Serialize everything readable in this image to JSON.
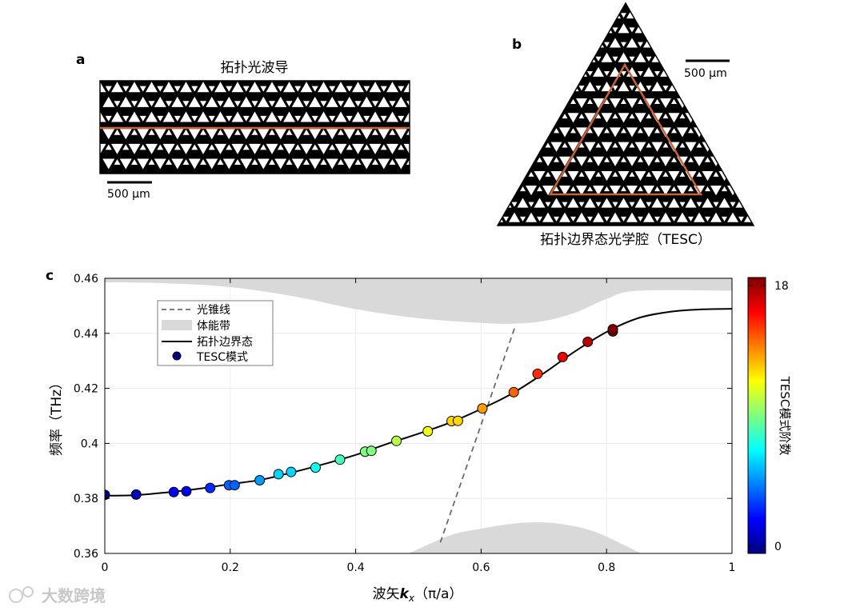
{
  "panel_a": {
    "label": "a",
    "title": "拓扑光波导",
    "scalebar": "500 μm",
    "waveguide_color": "#c8643c"
  },
  "panel_b": {
    "label": "b",
    "scalebar": "500 μm",
    "caption": "拓扑边界态光学腔（TESC）",
    "cavity_color": "#c8643c"
  },
  "panel_c": {
    "label": "c",
    "legend": {
      "light_cone": "光锥线",
      "bulk_band": "体能带",
      "edge_state": "拓扑边界态",
      "tesc_mode": "TESC模式"
    },
    "colorbar": {
      "label": "TESC模式阶数",
      "min_label": "0",
      "max_label": "18",
      "colormap": "jet"
    }
  },
  "watermark": "大数跨境",
  "chart_data": {
    "type": "scatter",
    "xlabel_prefix": "波矢",
    "xlabel_symbol": "k",
    "xlabel_subscript": "x",
    "xlabel_unit": "（π/a）",
    "ylabel": "频率（THz）",
    "xlim": [
      0,
      1
    ],
    "ylim": [
      0.36,
      0.46
    ],
    "x_ticks": [
      0,
      0.2,
      0.4,
      0.6,
      0.8,
      1
    ],
    "x_tick_labels": [
      "0",
      "0.2",
      "0.4",
      "0.6",
      "0.8",
      "1"
    ],
    "y_ticks": [
      0.36,
      0.38,
      0.4,
      0.42,
      0.44,
      0.46
    ],
    "y_tick_labels": [
      "0.36",
      "0.38",
      "0.4",
      "0.42",
      "0.44",
      "0.46"
    ],
    "grid": true,
    "legend_position": "top-left",
    "light_cone": [
      [
        0.535,
        0.364
      ],
      [
        0.655,
        0.443
      ]
    ],
    "upper_bulk_band_lower_edge": [
      [
        0,
        0.4585
      ],
      [
        0.1,
        0.4582
      ],
      [
        0.2,
        0.4568
      ],
      [
        0.3,
        0.4535
      ],
      [
        0.4,
        0.4488
      ],
      [
        0.5,
        0.4455
      ],
      [
        0.6,
        0.4438
      ],
      [
        0.65,
        0.4435
      ],
      [
        0.7,
        0.4445
      ],
      [
        0.75,
        0.4475
      ],
      [
        0.8,
        0.4525
      ],
      [
        0.85,
        0.4555
      ],
      [
        1,
        0.4555
      ]
    ],
    "lower_bulk_band_upper_edge": [
      [
        0.485,
        0.36
      ],
      [
        0.55,
        0.3665
      ],
      [
        0.6,
        0.369
      ],
      [
        0.65,
        0.3708
      ],
      [
        0.69,
        0.3713
      ],
      [
        0.73,
        0.3706
      ],
      [
        0.78,
        0.368
      ],
      [
        0.83,
        0.3628
      ],
      [
        0.855,
        0.36
      ]
    ],
    "edge_state_curve": [
      [
        0,
        0.381
      ],
      [
        0.05,
        0.3812
      ],
      [
        0.1,
        0.3822
      ],
      [
        0.15,
        0.3835
      ],
      [
        0.2,
        0.3852
      ],
      [
        0.25,
        0.3868
      ],
      [
        0.3,
        0.3895
      ],
      [
        0.35,
        0.3925
      ],
      [
        0.4,
        0.3958
      ],
      [
        0.45,
        0.3998
      ],
      [
        0.5,
        0.4035
      ],
      [
        0.55,
        0.4075
      ],
      [
        0.6,
        0.4125
      ],
      [
        0.65,
        0.4182
      ],
      [
        0.7,
        0.4255
      ],
      [
        0.75,
        0.4335
      ],
      [
        0.8,
        0.4405
      ],
      [
        0.85,
        0.4455
      ],
      [
        0.9,
        0.4478
      ],
      [
        0.95,
        0.4487
      ],
      [
        1,
        0.4489
      ]
    ],
    "tesc_modes": [
      {
        "order": 0,
        "kx": 0.0,
        "freq": 0.3813
      },
      {
        "order": 1,
        "kx": 0.05,
        "freq": 0.3814
      },
      {
        "order": 2,
        "kx": 0.11,
        "freq": 0.3823
      },
      {
        "order": 2,
        "kx": 0.13,
        "freq": 0.3826
      },
      {
        "order": 3,
        "kx": 0.168,
        "freq": 0.3838
      },
      {
        "order": 4,
        "kx": 0.198,
        "freq": 0.3848
      },
      {
        "order": 4,
        "kx": 0.207,
        "freq": 0.3848
      },
      {
        "order": 5,
        "kx": 0.247,
        "freq": 0.3866
      },
      {
        "order": 6,
        "kx": 0.277,
        "freq": 0.3888
      },
      {
        "order": 6,
        "kx": 0.297,
        "freq": 0.3896
      },
      {
        "order": 7,
        "kx": 0.336,
        "freq": 0.3912
      },
      {
        "order": 8,
        "kx": 0.375,
        "freq": 0.3941
      },
      {
        "order": 9,
        "kx": 0.415,
        "freq": 0.397
      },
      {
        "order": 9,
        "kx": 0.425,
        "freq": 0.3973
      },
      {
        "order": 10,
        "kx": 0.465,
        "freq": 0.4009
      },
      {
        "order": 11,
        "kx": 0.515,
        "freq": 0.4044
      },
      {
        "order": 12,
        "kx": 0.553,
        "freq": 0.4081
      },
      {
        "order": 12,
        "kx": 0.563,
        "freq": 0.4082
      },
      {
        "order": 13,
        "kx": 0.602,
        "freq": 0.4127
      },
      {
        "order": 14,
        "kx": 0.652,
        "freq": 0.4186
      },
      {
        "order": 15,
        "kx": 0.69,
        "freq": 0.4253
      },
      {
        "order": 16,
        "kx": 0.73,
        "freq": 0.4314
      },
      {
        "order": 17,
        "kx": 0.77,
        "freq": 0.4369
      },
      {
        "order": 18,
        "kx": 0.81,
        "freq": 0.4407
      },
      {
        "order": 18,
        "kx": 0.81,
        "freq": 0.4415
      }
    ]
  }
}
